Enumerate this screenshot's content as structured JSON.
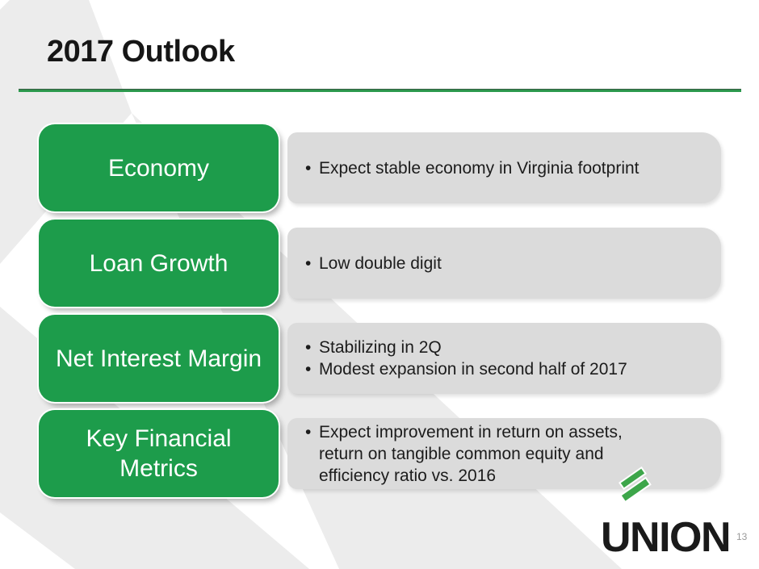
{
  "slide": {
    "title": "2017 Outlook",
    "page_number": "13"
  },
  "rows": [
    {
      "label": "Economy",
      "bullets": [
        "Expect stable economy in Virginia footprint"
      ]
    },
    {
      "label": "Loan Growth",
      "bullets": [
        "Low double digit"
      ]
    },
    {
      "label": "Net Interest Margin",
      "bullets": [
        "Stabilizing in 2Q",
        "Modest expansion in second half of 2017"
      ]
    },
    {
      "label": "Key Financial\nMetrics",
      "bullets": [
        "Expect improvement in return on assets, return on tangible common equity and efficiency ratio vs. 2016"
      ]
    }
  ],
  "logo": {
    "text": "UNION"
  },
  "colors": {
    "box_green": "#1d9c4b",
    "bar_gray": "#dbdbdb",
    "background_gray": "#ececec",
    "rule_green": "#2c9b4e",
    "logo_stripe_green": "#3da64a"
  }
}
